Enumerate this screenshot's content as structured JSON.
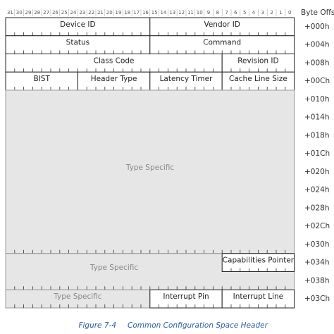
{
  "bit_numbers": [
    31,
    30,
    29,
    28,
    27,
    26,
    25,
    24,
    23,
    22,
    21,
    20,
    19,
    18,
    17,
    16,
    15,
    14,
    13,
    12,
    11,
    10,
    9,
    8,
    7,
    6,
    5,
    4,
    3,
    2,
    1,
    0
  ],
  "offset_header": "Byte Offset",
  "offsets": [
    "+000h",
    "+004h",
    "+008h",
    "+00Ch",
    "+010h",
    "+014h",
    "+018h",
    "+01Ch",
    "+020h",
    "+024h",
    "+028h",
    "+02Ch",
    "+030h",
    "+034h",
    "+038h",
    "+03Ch"
  ],
  "fields": [
    "Device ID",
    "Vendor ID",
    "Status",
    "Command",
    "Class Code",
    "Revision ID",
    "BIST",
    "Header Type",
    "Latency Timer",
    "Cache Line Size",
    "Type Specific",
    "Type Specific",
    "Capabilities Pointer",
    "Type Specific",
    "Interrupt Pin",
    "Interrupt Line"
  ],
  "caption": {
    "number": "Figure 7-4",
    "title": "Common Configuration Space Header"
  }
}
